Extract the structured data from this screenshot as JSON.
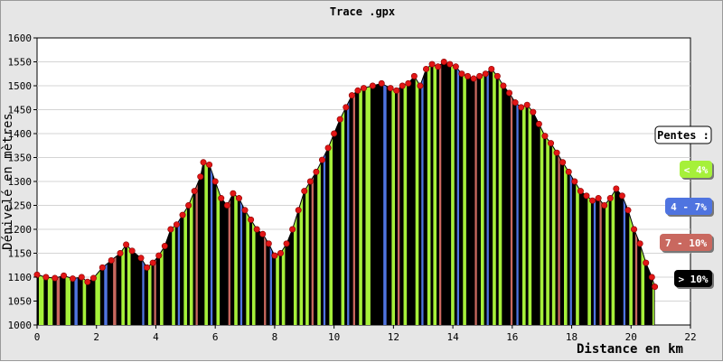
{
  "chart_data": {
    "type": "area",
    "title": "Trace .gpx",
    "xlabel": "Distance en km",
    "ylabel": "Dénivelé en mètres",
    "xlim": [
      0,
      22
    ],
    "ylim": [
      1000,
      1600
    ],
    "x_ticks": [
      0,
      2,
      4,
      6,
      8,
      10,
      12,
      14,
      16,
      18,
      20,
      22
    ],
    "y_ticks": [
      1000,
      1050,
      1100,
      1150,
      1200,
      1250,
      1300,
      1350,
      1400,
      1450,
      1500,
      1550,
      1600
    ],
    "grid": true,
    "legend": {
      "title": "Pentes :",
      "placement": "right",
      "items": [
        {
          "label": "< 4%",
          "color": "#a6f03a"
        },
        {
          "label": "4 - 7%",
          "color": "#4f74e0"
        },
        {
          "label": "7 - 10%",
          "color": "#c9685f"
        },
        {
          "label": "> 10%",
          "color": "#000000"
        }
      ]
    },
    "series": [
      {
        "x": [
          0.0,
          0.3,
          0.6,
          0.9,
          1.2,
          1.5,
          1.7,
          1.9,
          2.2,
          2.5,
          2.8,
          3.0,
          3.2,
          3.5,
          3.7,
          3.9,
          4.1,
          4.3,
          4.5,
          4.7,
          4.9,
          5.1,
          5.3,
          5.5,
          5.6,
          5.8,
          6.0,
          6.2,
          6.4,
          6.6,
          6.8,
          7.0,
          7.2,
          7.4,
          7.6,
          7.8,
          8.0,
          8.2,
          8.4,
          8.6,
          8.8,
          9.0,
          9.2,
          9.4,
          9.6,
          9.8,
          10.0,
          10.2,
          10.4,
          10.6,
          10.8,
          11.0,
          11.3,
          11.6,
          11.9,
          12.1,
          12.3,
          12.5,
          12.7,
          12.9,
          13.1,
          13.3,
          13.5,
          13.7,
          13.9,
          14.1,
          14.3,
          14.5,
          14.7,
          14.9,
          15.1,
          15.3,
          15.5,
          15.7,
          15.9,
          16.1,
          16.3,
          16.5,
          16.7,
          16.9,
          17.1,
          17.3,
          17.5,
          17.7,
          17.9,
          18.1,
          18.3,
          18.5,
          18.7,
          18.9,
          19.1,
          19.3,
          19.5,
          19.7,
          19.9,
          20.1,
          20.3,
          20.5,
          20.7,
          20.8
        ],
        "y": [
          1105,
          1100,
          1098,
          1103,
          1097,
          1100,
          1090,
          1098,
          1120,
          1135,
          1150,
          1168,
          1155,
          1140,
          1120,
          1130,
          1145,
          1165,
          1200,
          1210,
          1230,
          1250,
          1280,
          1310,
          1340,
          1335,
          1300,
          1265,
          1250,
          1275,
          1265,
          1240,
          1220,
          1200,
          1190,
          1170,
          1145,
          1150,
          1170,
          1200,
          1240,
          1280,
          1300,
          1320,
          1345,
          1370,
          1400,
          1430,
          1455,
          1480,
          1490,
          1495,
          1500,
          1505,
          1495,
          1490,
          1500,
          1505,
          1520,
          1500,
          1535,
          1545,
          1540,
          1550,
          1545,
          1540,
          1525,
          1520,
          1515,
          1520,
          1525,
          1535,
          1520,
          1500,
          1485,
          1465,
          1455,
          1460,
          1445,
          1420,
          1395,
          1380,
          1360,
          1340,
          1320,
          1300,
          1280,
          1270,
          1260,
          1265,
          1250,
          1265,
          1285,
          1270,
          1240,
          1200,
          1170,
          1130,
          1100,
          1080
        ]
      }
    ]
  }
}
